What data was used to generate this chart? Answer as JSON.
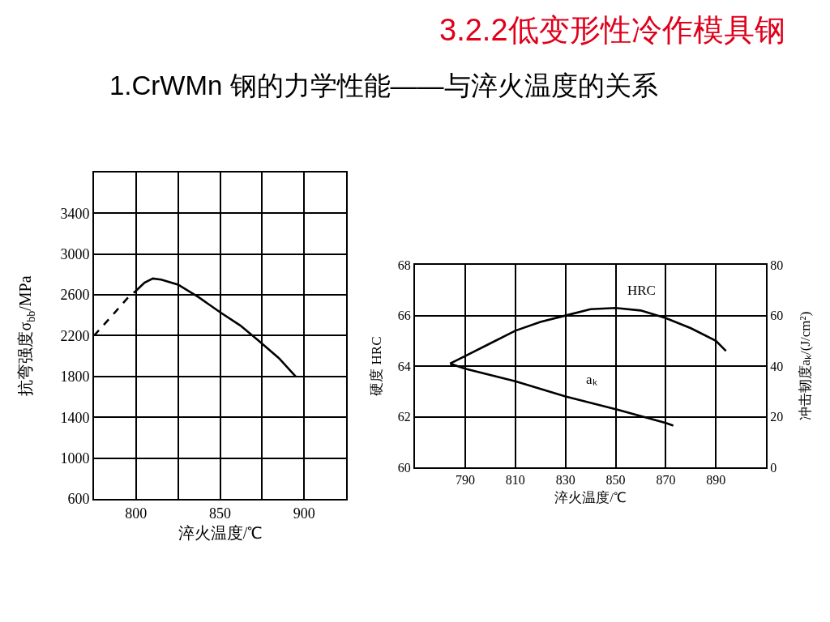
{
  "chart_data": [
    {
      "type": "line",
      "subtitle": "1.CrWMn 钢的力学性能——与淬火温度的关系",
      "xlabel": "淬火温度/℃",
      "ylabel": "抗弯强度σ$_{bb}$/MPa",
      "series": [
        {
          "color": "#000000",
          "line_style": "dashed",
          "x": [
            775,
            787,
            795,
            800
          ],
          "values": [
            2200,
            2420,
            2570,
            2640
          ]
        },
        {
          "color": "#000000",
          "x": [
            800,
            805,
            810,
            815,
            825,
            837,
            850,
            862,
            873,
            885,
            895
          ],
          "values": [
            2640,
            2720,
            2760,
            2750,
            2700,
            2580,
            2430,
            2300,
            2150,
            1980,
            1800
          ]
        }
      ],
      "xlim": [
        775,
        925
      ],
      "xticks": [
        800,
        {
          "value": 825,
          "label": null
        },
        850,
        {
          "value": 875,
          "label": null
        },
        900
      ],
      "ylim": [
        600,
        3800
      ],
      "yticks": [
        600,
        1000,
        1400,
        1800,
        2200,
        2600,
        3000,
        3400
      ],
      "grid": true
    },
    {
      "type": "line",
      "title": "3.2.2低变形性冷作模具钢",
      "xlabel": "淬火温度/℃",
      "ylabel": "硬度 HRC",
      "y2label": "冲击韧度aₖ/(J/cm²)",
      "series": [
        {
          "name": "HRC",
          "color": "#000000",
          "x": [
            784,
            790,
            800,
            810,
            820,
            830,
            840,
            850,
            860,
            870,
            880,
            890,
            894
          ],
          "values": [
            64.1,
            64.4,
            64.9,
            65.4,
            65.75,
            66.0,
            66.25,
            66.3,
            66.2,
            65.9,
            65.5,
            65.0,
            64.6
          ]
        },
        {
          "name": "aₖ",
          "color": "#000000",
          "axis": "y2",
          "x": [
            784,
            790,
            810,
            830,
            850,
            870,
            873
          ],
          "values": [
            41,
            39,
            34,
            28,
            23,
            17.5,
            16.5
          ]
        }
      ],
      "xlim": [
        770,
        910
      ],
      "xticks": [
        790,
        810,
        830,
        850,
        870,
        890
      ],
      "ylim": [
        60,
        68
      ],
      "yticks": [
        60,
        62,
        64,
        66,
        68
      ],
      "y2lim": [
        0,
        80
      ],
      "y2ticks": [
        0,
        20,
        40,
        60,
        80
      ],
      "grid": true
    }
  ]
}
